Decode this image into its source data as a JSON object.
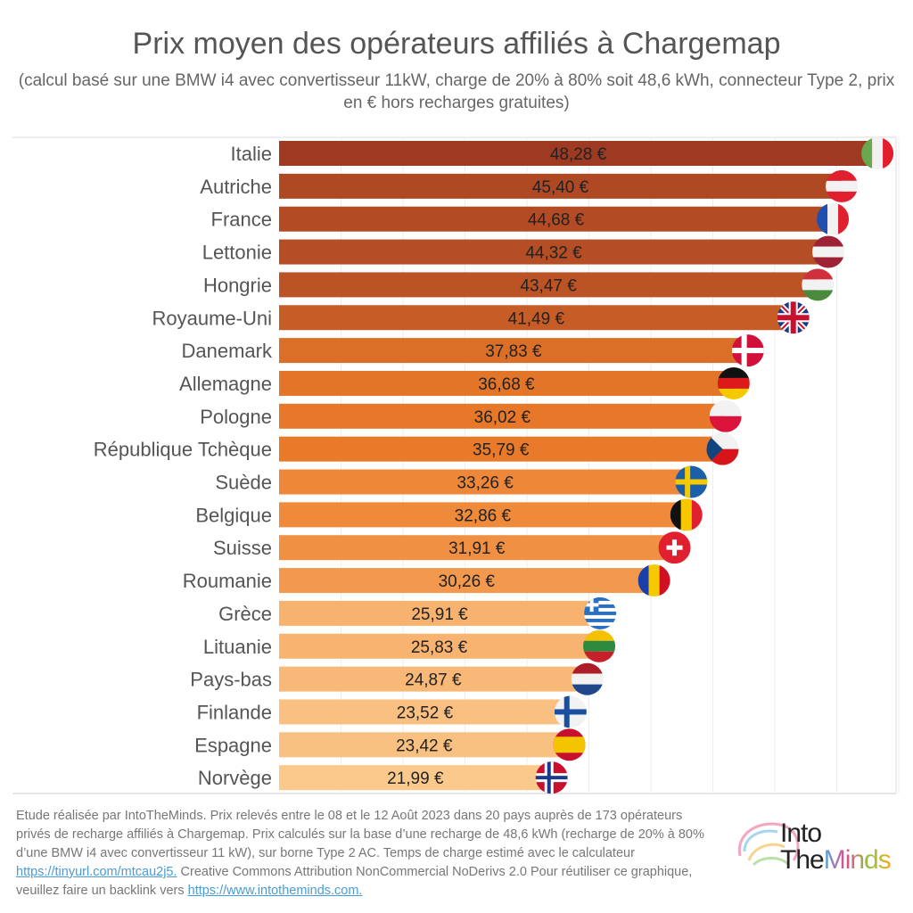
{
  "chart_data": {
    "type": "bar",
    "title": "Prix moyen des opérateurs affiliés à Chargemap",
    "subtitle": "(calcul basé sur une BMW i4 avec convertisseur 11kW, charge de 20% à 80% soit 48,6 kWh, connecteur Type 2, prix en € hors recharges gratuites)",
    "categories": [
      "Italie",
      "Autriche",
      "France",
      "Lettonie",
      "Hongrie",
      "Royaume-Uni",
      "Danemark",
      "Allemagne",
      "Pologne",
      "République Tchèque",
      "Suède",
      "Belgique",
      "Suisse",
      "Roumanie",
      "Grèce",
      "Lituanie",
      "Pays-bas",
      "Finlande",
      "Espagne",
      "Norvège"
    ],
    "values": [
      48.28,
      45.4,
      44.68,
      44.32,
      43.47,
      41.49,
      37.83,
      36.68,
      36.02,
      35.79,
      33.26,
      32.86,
      31.91,
      30.26,
      25.91,
      25.83,
      24.87,
      23.52,
      23.42,
      21.99
    ],
    "labels": [
      "48,28 €",
      "45,40 €",
      "44,68 €",
      "44,32 €",
      "43,47 €",
      "41,49 €",
      "37,83 €",
      "36,68 €",
      "36,02 €",
      "35,79 €",
      "33,26 €",
      "32,86 €",
      "31,91 €",
      "30,26 €",
      "25,91 €",
      "25,83 €",
      "24,87 €",
      "23,52 €",
      "23,42 €",
      "21,99 €"
    ],
    "xlim": [
      0,
      50
    ],
    "grid": true,
    "color_dark": "#9e3a22",
    "color_light": "#fbc98c"
  },
  "footer": {
    "text1": "Etude réalisée par IntoTheMinds. Prix relevés entre le 08 et le 12 Août 2023 dans 20 pays auprès de 173 opérateurs privés de recharge affiliés à Chargemap. Prix calculés sur la base d’une recharge de 48,6 kWh (recharge de 20% à 80% d’une BMW i4 avec convertisseur 11 kW), sur borne Type 2 AC. Temps de charge estimé avec le calculateur ",
    "link1": "https://tinyurl.com/mtcau2j5.",
    "text2": " Creative Commons Attribution NonCommercial NoDerivs 2.0 Pour réutiliser ce graphique, veuillez faire un backlink vers ",
    "link2": "https://www.intotheminds.com."
  },
  "logo": {
    "line1": "Into",
    "line2a": "The",
    "line2b": "Minds"
  }
}
